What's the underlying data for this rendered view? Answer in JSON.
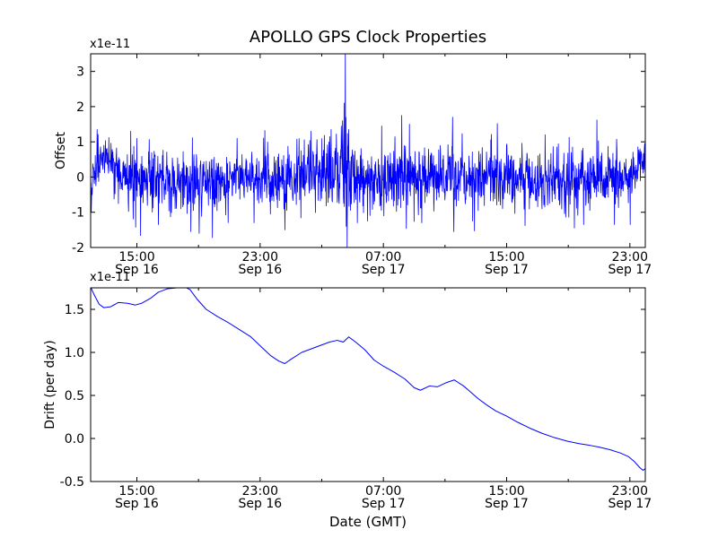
{
  "figure": {
    "background_color": "#ffffff",
    "line_color": "#0000ff",
    "axis_color": "#000000",
    "tick_label_color": "#000000"
  },
  "chart_data": [
    {
      "type": "line",
      "title": "APOLLO GPS Clock Properties",
      "ylabel": "Offset",
      "offset_text": "x1e-11",
      "value_scale": "1e-11",
      "xlim_hours": [
        12,
        48
      ],
      "ylim": [
        -2,
        3.5
      ],
      "grid": false,
      "legend": null,
      "yticks": {
        "values": [
          3,
          2,
          1,
          0,
          -1,
          -2
        ],
        "labels": [
          "3",
          "2",
          "1",
          "0",
          "-1",
          "-2"
        ]
      },
      "xticks": [
        {
          "t": 15,
          "time": "15:00",
          "date": "Sep 16"
        },
        {
          "t": 23,
          "time": "23:00",
          "date": "Sep 16"
        },
        {
          "t": 31,
          "time": "07:00",
          "date": "Sep 17"
        },
        {
          "t": 39,
          "time": "15:00",
          "date": "Sep 17"
        },
        {
          "t": 47,
          "time": "23:00",
          "date": "Sep 17"
        }
      ],
      "xminor_hours": [
        19,
        27,
        35,
        43
      ],
      "noise_series": {
        "n": 1800,
        "seed": 1234567,
        "tail_prob": 0.05,
        "tail_mult": 1.8,
        "envelope": [
          [
            12.0,
            -0.45,
            0.22
          ],
          [
            12.25,
            0.2,
            0.3
          ],
          [
            12.6,
            0.55,
            0.3
          ],
          [
            13.2,
            0.45,
            0.32
          ],
          [
            13.8,
            0.12,
            0.35
          ],
          [
            14.5,
            0.0,
            0.38
          ],
          [
            16.0,
            -0.1,
            0.42
          ],
          [
            18.0,
            -0.15,
            0.45
          ],
          [
            20.0,
            -0.12,
            0.42
          ],
          [
            22.0,
            0.0,
            0.4
          ],
          [
            24.0,
            -0.05,
            0.4
          ],
          [
            26.0,
            0.05,
            0.42
          ],
          [
            28.0,
            0.1,
            0.5
          ],
          [
            28.5,
            0.0,
            0.8
          ],
          [
            29.0,
            0.0,
            0.5
          ],
          [
            30.5,
            0.0,
            0.45
          ],
          [
            32.2,
            0.1,
            0.5
          ],
          [
            33.0,
            0.0,
            0.45
          ],
          [
            34.5,
            0.0,
            0.42
          ],
          [
            35.5,
            0.05,
            0.48
          ],
          [
            36.5,
            0.0,
            0.42
          ],
          [
            38.0,
            0.05,
            0.45
          ],
          [
            39.5,
            -0.05,
            0.42
          ],
          [
            41.0,
            -0.05,
            0.4
          ],
          [
            43.0,
            -0.1,
            0.42
          ],
          [
            45.0,
            0.0,
            0.42
          ],
          [
            46.5,
            -0.05,
            0.4
          ],
          [
            47.5,
            0.2,
            0.35
          ],
          [
            48.0,
            0.55,
            0.28
          ]
        ],
        "spikes": [
          [
            12.05,
            -1.0
          ],
          [
            14.6,
            1.3
          ],
          [
            16.4,
            -1.35
          ],
          [
            18.5,
            -1.55
          ],
          [
            19.05,
            -1.6
          ],
          [
            19.9,
            -1.72
          ],
          [
            21.5,
            1.1
          ],
          [
            22.6,
            -1.3
          ],
          [
            24.6,
            -1.5
          ],
          [
            26.3,
            1.3
          ],
          [
            27.6,
            1.35
          ],
          [
            28.35,
            1.6
          ],
          [
            28.45,
            2.1
          ],
          [
            28.52,
            3.62
          ],
          [
            28.58,
            -1.4
          ],
          [
            28.64,
            -2.05
          ],
          [
            28.75,
            1.35
          ],
          [
            29.3,
            -1.3
          ],
          [
            30.9,
            1.45
          ],
          [
            32.2,
            1.75
          ],
          [
            32.7,
            1.5
          ],
          [
            33.5,
            -1.3
          ],
          [
            35.5,
            1.7
          ],
          [
            35.58,
            -1.55
          ],
          [
            36.8,
            -1.25
          ],
          [
            38.4,
            1.52
          ],
          [
            40.2,
            -1.38
          ],
          [
            41.5,
            1.2
          ],
          [
            43.4,
            -1.45
          ],
          [
            44.85,
            1.62
          ],
          [
            46.0,
            -1.35
          ],
          [
            47.95,
            0.95
          ]
        ]
      }
    },
    {
      "type": "line",
      "ylabel": "Drift (per day)",
      "xlabel": "Date (GMT)",
      "offset_text": "x1e-11",
      "value_scale": "1e-11",
      "xlim_hours": [
        12,
        48
      ],
      "ylim": [
        -0.5,
        1.75
      ],
      "grid": false,
      "legend": null,
      "yticks": {
        "values": [
          1.5,
          1.0,
          0.5,
          0.0,
          -0.5
        ],
        "labels": [
          "1.5",
          "1.0",
          "0.5",
          "0.0",
          "-0.5"
        ]
      },
      "xticks": [
        {
          "t": 15,
          "time": "15:00",
          "date": "Sep 16"
        },
        {
          "t": 23,
          "time": "23:00",
          "date": "Sep 16"
        },
        {
          "t": 31,
          "time": "07:00",
          "date": "Sep 17"
        },
        {
          "t": 39,
          "time": "15:00",
          "date": "Sep 17"
        },
        {
          "t": 47,
          "time": "23:00",
          "date": "Sep 17"
        }
      ],
      "xminor_hours": [
        19,
        27,
        35,
        43
      ],
      "points": [
        [
          12.0,
          1.76
        ],
        [
          12.2,
          1.68
        ],
        [
          12.55,
          1.56
        ],
        [
          12.85,
          1.52
        ],
        [
          13.3,
          1.53
        ],
        [
          13.8,
          1.58
        ],
        [
          14.4,
          1.57
        ],
        [
          14.9,
          1.55
        ],
        [
          15.3,
          1.57
        ],
        [
          15.9,
          1.63
        ],
        [
          16.4,
          1.7
        ],
        [
          17.0,
          1.74
        ],
        [
          17.6,
          1.75
        ],
        [
          18.1,
          1.76
        ],
        [
          18.45,
          1.73
        ],
        [
          18.9,
          1.62
        ],
        [
          19.5,
          1.5
        ],
        [
          20.2,
          1.42
        ],
        [
          20.9,
          1.35
        ],
        [
          21.7,
          1.26
        ],
        [
          22.4,
          1.18
        ],
        [
          23.1,
          1.06
        ],
        [
          23.7,
          0.96
        ],
        [
          24.2,
          0.9
        ],
        [
          24.6,
          0.87
        ],
        [
          25.0,
          0.92
        ],
        [
          25.7,
          1.0
        ],
        [
          26.6,
          1.06
        ],
        [
          27.5,
          1.12
        ],
        [
          28.0,
          1.14
        ],
        [
          28.4,
          1.12
        ],
        [
          28.75,
          1.18
        ],
        [
          29.2,
          1.12
        ],
        [
          29.8,
          1.03
        ],
        [
          30.4,
          0.91
        ],
        [
          31.0,
          0.84
        ],
        [
          31.7,
          0.77
        ],
        [
          32.4,
          0.69
        ],
        [
          33.0,
          0.59
        ],
        [
          33.4,
          0.56
        ],
        [
          34.0,
          0.61
        ],
        [
          34.5,
          0.6
        ],
        [
          35.1,
          0.65
        ],
        [
          35.6,
          0.68
        ],
        [
          36.2,
          0.61
        ],
        [
          36.6,
          0.55
        ],
        [
          37.1,
          0.47
        ],
        [
          37.7,
          0.39
        ],
        [
          38.3,
          0.32
        ],
        [
          39.0,
          0.26
        ],
        [
          39.7,
          0.19
        ],
        [
          40.5,
          0.12
        ],
        [
          41.3,
          0.06
        ],
        [
          42.1,
          0.01
        ],
        [
          42.9,
          -0.03
        ],
        [
          43.7,
          -0.06
        ],
        [
          44.4,
          -0.08
        ],
        [
          45.0,
          -0.1
        ],
        [
          45.7,
          -0.13
        ],
        [
          46.4,
          -0.17
        ],
        [
          46.9,
          -0.21
        ],
        [
          47.3,
          -0.27
        ],
        [
          47.65,
          -0.34
        ],
        [
          47.85,
          -0.37
        ],
        [
          48.0,
          -0.35
        ]
      ]
    }
  ]
}
